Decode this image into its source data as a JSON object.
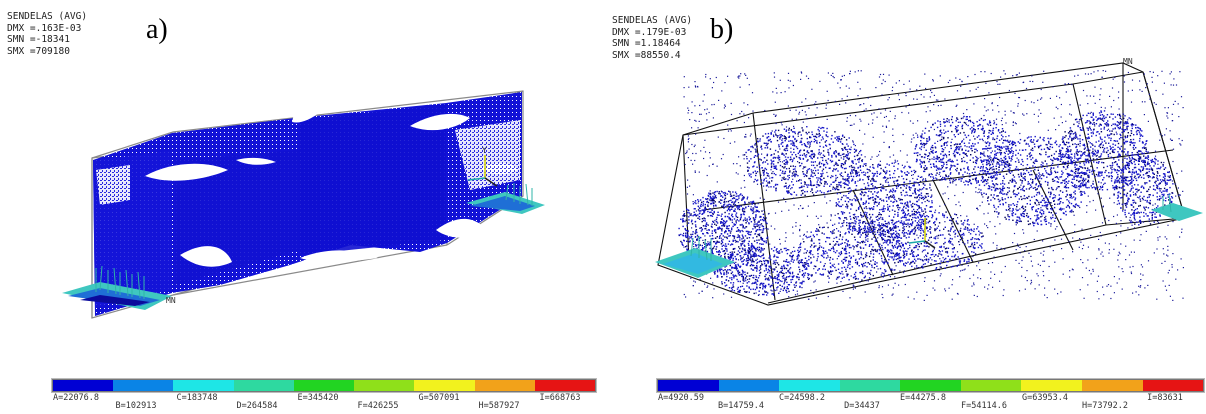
{
  "panels": [
    {
      "label": "a)",
      "info": {
        "title": "SENDELAS (AVG)",
        "dmx": "DMX =.163E-03",
        "smn": "SMN =-18341",
        "smx": "SMX =709180"
      },
      "markers": {
        "mn": "MN",
        "axis_y": "Y"
      },
      "legend": [
        "A=22076.8",
        "B=102913",
        "C=183748",
        "D=264584",
        "E=345420",
        "F=426255",
        "G=507091",
        "H=587927",
        "I=668763"
      ]
    },
    {
      "label": "b)",
      "info": {
        "title": "SENDELAS (AVG)",
        "dmx": "DMX =.179E-03",
        "smn": "SMN =1.18464",
        "smx": "SMX =88550.4"
      },
      "markers": {
        "mn": "MN"
      },
      "legend": [
        "A=4920.59",
        "B=14759.4",
        "C=24598.2",
        "D=34437",
        "E=44275.8",
        "F=54114.6",
        "G=63953.4",
        "H=73792.2",
        "I=83631"
      ]
    }
  ],
  "colors": {
    "legend": [
      "#0000d4",
      "#0a84e6",
      "#1ee6e6",
      "#2ed9a0",
      "#22d422",
      "#8fe01a",
      "#f2f21e",
      "#f2a21a",
      "#e61414"
    ],
    "crack": "#1414c8",
    "edge": "#8a8a8a",
    "accent_cyan": "#3fc7c0"
  }
}
